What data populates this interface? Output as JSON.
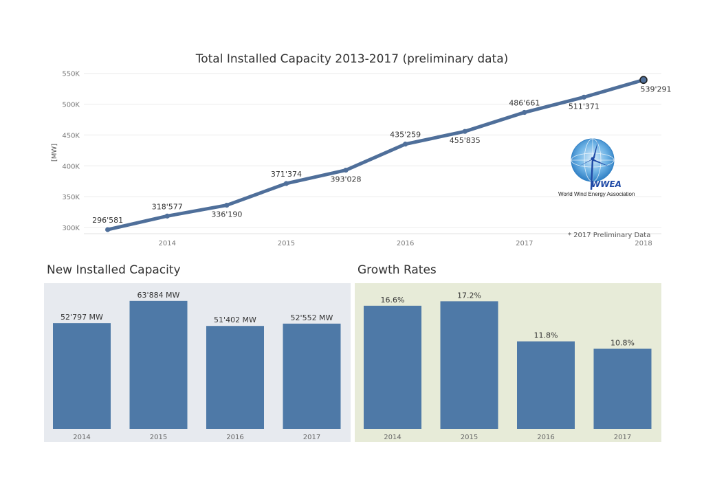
{
  "line_chart": {
    "title": "Total Installed Capacity 2013-2017 (preliminary data)",
    "footnote": "* 2017 Preliminary Data",
    "logo": {
      "abbr": "WWEA",
      "name": "World Wind Energy Association"
    }
  },
  "bars_left": {
    "title": "New Installed Capacity"
  },
  "bars_right": {
    "title": "Growth Rates"
  },
  "colors": {
    "line": "#4f6f9a",
    "bar": "#4e79a7",
    "left_bg": "#e7eaef",
    "right_bg": "#e7ebd8"
  },
  "chart_data": [
    {
      "type": "line",
      "title": "Total Installed Capacity 2013-2017 (preliminary data)",
      "ylabel": "[MW]",
      "xlabel": "",
      "x": [
        2013.5,
        2014,
        2014.5,
        2015,
        2015.5,
        2016,
        2016.5,
        2017,
        2017.5,
        2018
      ],
      "values": [
        296581,
        318577,
        336190,
        371374,
        393028,
        435259,
        455835,
        486661,
        511371,
        539291
      ],
      "labels": [
        "296'581",
        "318'577",
        "336'190",
        "371'374",
        "393'028",
        "435'259",
        "455'835",
        "486'661",
        "511'371",
        "539'291"
      ],
      "label_side": [
        "above",
        "above",
        "below",
        "above",
        "below",
        "above",
        "below",
        "above",
        "below",
        "below"
      ],
      "xticks": [
        "2014",
        "2015",
        "2016",
        "2017",
        "2018"
      ],
      "yticks": [
        "300K",
        "350K",
        "400K",
        "450K",
        "500K",
        "550K"
      ],
      "ytick_values": [
        300000,
        350000,
        400000,
        450000,
        500000,
        550000
      ],
      "ylim": [
        290000,
        553000
      ],
      "xlim": [
        2013.3,
        2018.15
      ],
      "grid": true
    },
    {
      "type": "bar",
      "title": "New Installed Capacity",
      "categories": [
        "2014",
        "2015",
        "2016",
        "2017"
      ],
      "values": [
        52797,
        63884,
        51402,
        52552
      ],
      "labels": [
        "52'797 MW",
        "63'884 MW",
        "51'402 MW",
        "52'552 MW"
      ],
      "ylim": [
        0,
        70000
      ]
    },
    {
      "type": "bar",
      "title": "Growth Rates",
      "categories": [
        "2014",
        "2015",
        "2016",
        "2017"
      ],
      "values": [
        16.6,
        17.2,
        11.8,
        10.8
      ],
      "labels": [
        "16.6%",
        "17.2%",
        "11.8%",
        "10.8%"
      ],
      "ylim": [
        0,
        18.9
      ]
    }
  ]
}
